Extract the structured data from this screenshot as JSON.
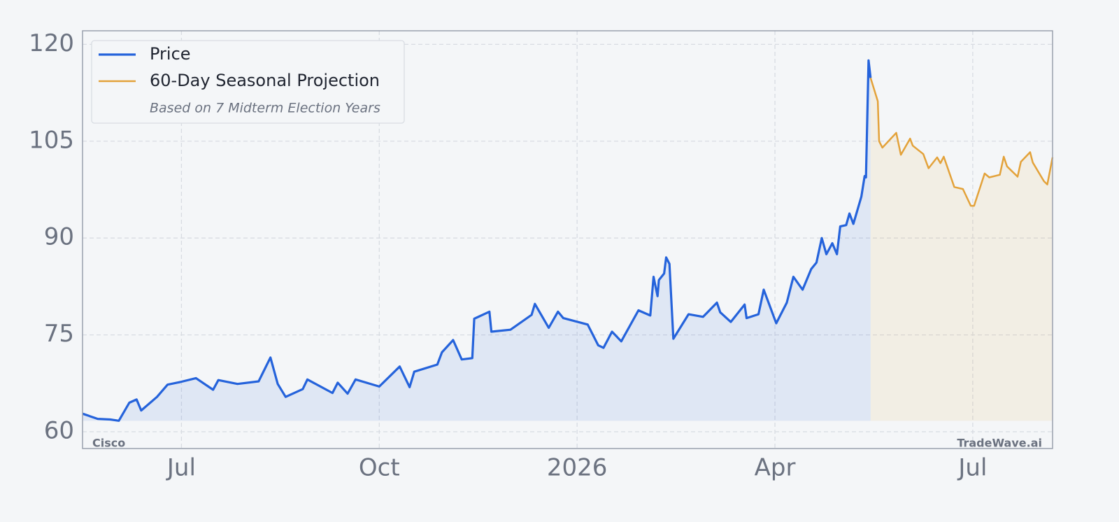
{
  "chart_data": {
    "type": "line",
    "xlim": [
      5.5,
      20.21
    ],
    "ylim": [
      57.4,
      122.1
    ],
    "xticks": [
      {
        "value": 7,
        "label": "Jul"
      },
      {
        "value": 10,
        "label": "Oct"
      },
      {
        "value": 13,
        "label": "2026"
      },
      {
        "value": 16,
        "label": "Apr"
      },
      {
        "value": 19,
        "label": "Jul"
      }
    ],
    "yticks": [
      60,
      75,
      90,
      105,
      120
    ],
    "grid": true,
    "legend": "upper left",
    "legend_note": "Based on 7 Midterm Election Years",
    "annotations": [
      "Cisco",
      "TradeWave.ai"
    ],
    "series": [
      {
        "name": "Price",
        "color": "#2563db",
        "x": [
          5.5,
          5.73,
          5.92,
          6.05,
          6.21,
          6.32,
          6.39,
          6.63,
          6.79,
          6.98,
          7.22,
          7.48,
          7.56,
          7.85,
          8.17,
          8.35,
          8.46,
          8.58,
          8.84,
          8.91,
          9.29,
          9.37,
          9.52,
          9.64,
          10.0,
          10.31,
          10.46,
          10.53,
          10.88,
          10.95,
          11.12,
          11.25,
          11.41,
          11.44,
          11.67,
          11.7,
          11.99,
          12.31,
          12.36,
          12.57,
          12.71,
          12.79,
          13.16,
          13.32,
          13.4,
          13.53,
          13.67,
          13.93,
          14.11,
          14.16,
          14.22,
          14.24,
          14.32,
          14.35,
          14.4,
          14.46,
          14.69,
          14.91,
          15.12,
          15.17,
          15.33,
          15.54,
          15.57,
          15.75,
          15.83,
          15.91,
          16.02,
          16.18,
          16.28,
          16.42,
          16.55,
          16.63,
          16.71,
          16.78,
          16.87,
          16.94,
          16.99,
          17.08,
          17.13,
          17.19,
          17.31,
          17.36,
          17.38,
          17.42,
          17.45
        ],
        "values": [
          62.8,
          62.0,
          61.9,
          61.7,
          64.5,
          65.0,
          63.3,
          65.4,
          67.3,
          67.7,
          68.3,
          66.5,
          68.0,
          67.4,
          67.8,
          71.5,
          67.4,
          65.4,
          66.6,
          68.1,
          66.0,
          67.6,
          65.9,
          68.1,
          67.0,
          70.1,
          66.9,
          69.3,
          70.4,
          72.3,
          74.2,
          71.2,
          71.4,
          77.5,
          78.6,
          75.5,
          75.8,
          78.1,
          79.8,
          76.1,
          78.6,
          77.6,
          76.6,
          73.4,
          73.0,
          75.5,
          74.0,
          78.8,
          78.0,
          84.0,
          81.0,
          83.5,
          84.5,
          87.0,
          86.0,
          74.4,
          78.2,
          77.8,
          80.0,
          78.5,
          77.0,
          79.7,
          77.6,
          78.2,
          82.0,
          79.8,
          76.8,
          80.0,
          84.0,
          82.0,
          85.2,
          86.2,
          90.0,
          87.5,
          89.2,
          87.5,
          91.8,
          92.0,
          93.8,
          92.2,
          96.4,
          99.6,
          99.4,
          117.5,
          114.8
        ]
      },
      {
        "name": "60-Day Seasonal Projection",
        "color": "#e3a23a",
        "x": [
          17.45,
          17.56,
          17.58,
          17.63,
          17.84,
          17.91,
          18.05,
          18.09,
          18.25,
          18.33,
          18.46,
          18.51,
          18.56,
          18.72,
          18.85,
          18.97,
          19.02,
          19.18,
          19.25,
          19.41,
          19.47,
          19.52,
          19.68,
          19.73,
          19.87,
          19.91,
          20.08,
          20.13,
          20.21
        ],
        "values": [
          114.8,
          111.2,
          105.0,
          104.0,
          106.3,
          102.9,
          105.4,
          104.3,
          103.0,
          100.8,
          102.5,
          101.6,
          102.6,
          97.9,
          97.6,
          95.0,
          95.0,
          100.0,
          99.4,
          99.8,
          102.6,
          101.1,
          99.5,
          101.8,
          103.3,
          101.7,
          98.8,
          98.3,
          102.5
        ]
      }
    ]
  }
}
